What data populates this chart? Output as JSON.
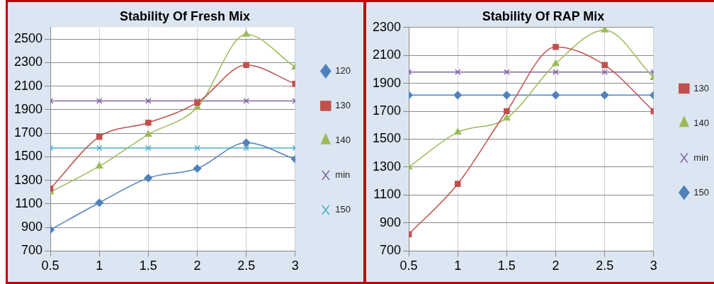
{
  "chart_data": [
    {
      "type": "line",
      "title": "Stability Of Fresh Mix",
      "x": [
        0.5,
        1,
        1.5,
        2,
        2.5,
        3
      ],
      "xlim": [
        0.5,
        3
      ],
      "xticks": [
        0.5,
        1,
        1.5,
        2,
        2.5,
        3
      ],
      "ylim": [
        700,
        2600
      ],
      "yticks": [
        700,
        900,
        1100,
        1300,
        1500,
        1700,
        1900,
        2100,
        2300,
        2500
      ],
      "grid": true,
      "legend": "right",
      "series": [
        {
          "name": "120",
          "color": "#4f81bd",
          "marker": "diamond",
          "values": [
            880,
            1110,
            1320,
            1400,
            1620,
            1480
          ]
        },
        {
          "name": "130",
          "color": "#c0504d",
          "marker": "square",
          "values": [
            1230,
            1670,
            1790,
            1960,
            2280,
            2120
          ]
        },
        {
          "name": "140",
          "color": "#9bbb59",
          "marker": "triangle",
          "values": [
            1200,
            1420,
            1690,
            1920,
            2540,
            2260
          ]
        },
        {
          "name": "min",
          "color": "#8064a2",
          "marker": "cross",
          "values": [
            1975,
            1975,
            1975,
            1975,
            1975,
            1975
          ]
        },
        {
          "name": "150",
          "color": "#4bacc6",
          "marker": "cross",
          "values": [
            1575,
            1575,
            1575,
            1575,
            1575,
            1575
          ]
        }
      ]
    },
    {
      "type": "line",
      "title": "Stability Of RAP Mix",
      "x": [
        0.5,
        1,
        1.5,
        2,
        2.5,
        3
      ],
      "xlim": [
        0.5,
        3
      ],
      "xticks": [
        0.5,
        1,
        1.5,
        2,
        2.5,
        3
      ],
      "ylim": [
        700,
        2300
      ],
      "yticks": [
        700,
        900,
        1100,
        1300,
        1500,
        1700,
        1900,
        2100,
        2300
      ],
      "grid": true,
      "legend": "right",
      "series": [
        {
          "name": "130",
          "color": "#c0504d",
          "marker": "square",
          "values": [
            820,
            1180,
            1700,
            2160,
            2030,
            1700
          ]
        },
        {
          "name": "140",
          "color": "#9bbb59",
          "marker": "triangle",
          "values": [
            1300,
            1550,
            1650,
            2040,
            2280,
            1940
          ]
        },
        {
          "name": "min",
          "color": "#8064a2",
          "marker": "cross",
          "values": [
            1980,
            1980,
            1980,
            1980,
            1980,
            1980
          ]
        },
        {
          "name": "150",
          "color": "#4f81bd",
          "marker": "diamond",
          "values": [
            1815,
            1815,
            1815,
            1815,
            1815,
            1815
          ]
        }
      ]
    }
  ]
}
